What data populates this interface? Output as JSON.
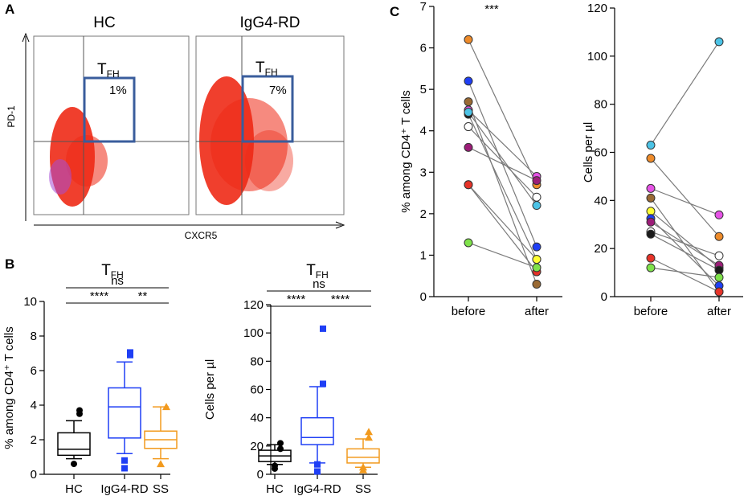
{
  "panels": {
    "a": "A",
    "b": "B",
    "c": "C"
  },
  "panel_a": {
    "plots": [
      {
        "title": "HC",
        "gate_label": "T",
        "gate_sub": "FH",
        "gate_percent": "1%"
      },
      {
        "title": "IgG4-RD",
        "gate_label": "T",
        "gate_sub": "FH",
        "gate_percent": "7%"
      }
    ],
    "y_axis": "PD-1",
    "x_axis": "CXCR5"
  },
  "chart_data": [
    {
      "id": "B-left",
      "type": "box",
      "title": "T",
      "title_sub": "FH",
      "ylabel": "% among CD4⁺ T cells",
      "ylim": [
        0,
        10
      ],
      "yticks": [
        "0",
        "2",
        "4",
        "6",
        "8",
        "10"
      ],
      "categories": [
        "HC",
        "IgG4-RD",
        "SS"
      ],
      "colors": [
        "#000000",
        "#1f3ff5",
        "#f29a1e"
      ],
      "markers": [
        "circle",
        "square",
        "triangle"
      ],
      "boxes": [
        {
          "whisker_low": 0.9,
          "q1": 1.1,
          "median": 1.45,
          "q3": 2.4,
          "whisker_high": 3.1,
          "outliers": [
            3.5,
            3.7,
            0.6
          ]
        },
        {
          "whisker_low": 1.2,
          "q1": 2.1,
          "median": 3.9,
          "q3": 5.0,
          "whisker_high": 6.5,
          "outliers": [
            6.9,
            7.05,
            0.8,
            0.35
          ]
        },
        {
          "whisker_low": 0.9,
          "q1": 1.5,
          "median": 2.0,
          "q3": 2.5,
          "whisker_high": 3.9,
          "outliers": [
            3.9,
            0.6
          ]
        }
      ],
      "significance": [
        {
          "label": "ns",
          "from": 0,
          "to": 2,
          "level": 1
        },
        {
          "label": "****",
          "from": 0,
          "to": 1,
          "level": 0
        },
        {
          "label": "**",
          "from": 1,
          "to": 2,
          "level": 0
        }
      ]
    },
    {
      "id": "B-right",
      "type": "box",
      "title": "T",
      "title_sub": "FH",
      "ylabel": "Cells per µl",
      "ylim": [
        0,
        120
      ],
      "yticks": [
        "0",
        "20",
        "40",
        "60",
        "80",
        "100",
        "120"
      ],
      "categories": [
        "HC",
        "IgG4-RD",
        "SS"
      ],
      "colors": [
        "#000000",
        "#1f3ff5",
        "#f29a1e"
      ],
      "markers": [
        "circle",
        "square",
        "triangle"
      ],
      "boxes": [
        {
          "whisker_low": 7,
          "q1": 9,
          "median": 13,
          "q3": 17,
          "whisker_high": 21,
          "outliers": [
            22,
            18,
            6,
            4
          ]
        },
        {
          "whisker_low": 8,
          "q1": 21,
          "median": 26,
          "q3": 40,
          "whisker_high": 62,
          "outliers": [
            103,
            64,
            7,
            2
          ]
        },
        {
          "whisker_low": 5,
          "q1": 8,
          "median": 12,
          "q3": 18,
          "whisker_high": 25,
          "outliers": [
            30,
            26,
            5,
            3
          ]
        }
      ],
      "significance": [
        {
          "label": "ns",
          "from": 0,
          "to": 2,
          "level": 1
        },
        {
          "label": "****",
          "from": 0,
          "to": 1,
          "level": 0
        },
        {
          "label": "****",
          "from": 1,
          "to": 2,
          "level": 0
        }
      ]
    },
    {
      "id": "C-left",
      "type": "paired-line",
      "annotation": "***",
      "ylabel": "% among CD4⁺ T cells",
      "ylim": [
        0,
        7
      ],
      "yticks": [
        "0",
        "1",
        "2",
        "3",
        "4",
        "5",
        "6",
        "7"
      ],
      "categories": [
        "before",
        "after"
      ],
      "series": [
        {
          "color": "#ee8b2a",
          "before": 6.2,
          "after": 2.7
        },
        {
          "color": "#1f3ff5",
          "before": 5.2,
          "after": 1.2
        },
        {
          "color": "#9a6a34",
          "before": 4.7,
          "after": 0.3
        },
        {
          "color": "#e653e6",
          "before": 4.5,
          "after": 2.9
        },
        {
          "color": "#1a1a1a",
          "before": 4.4,
          "after": 0.9
        },
        {
          "color": "#ffffff",
          "before": 4.1,
          "after": 2.4
        },
        {
          "color": "#9c1d78",
          "before": 3.6,
          "after": 2.8
        },
        {
          "color": "#ffff33",
          "before": 2.7,
          "after": 0.9
        },
        {
          "color": "#e63328",
          "before": 2.7,
          "after": 0.6
        },
        {
          "color": "#7fe24a",
          "before": 1.3,
          "after": 0.7
        },
        {
          "color": "#4cc3e6",
          "before": 4.45,
          "after": 2.2
        }
      ]
    },
    {
      "id": "C-right",
      "type": "paired-line",
      "ylabel": "Cells per µl",
      "ylim": [
        0,
        120
      ],
      "yticks": [
        "0",
        "20",
        "40",
        "60",
        "80",
        "100",
        "120"
      ],
      "categories": [
        "before",
        "after"
      ],
      "series": [
        {
          "color": "#4cc3e6",
          "before": 63,
          "after": 106
        },
        {
          "color": "#ee8b2a",
          "before": 57.5,
          "after": 25
        },
        {
          "color": "#e653e6",
          "before": 45,
          "after": 34
        },
        {
          "color": "#9a6a34",
          "before": 41,
          "after": 2
        },
        {
          "color": "#ffff33",
          "before": 35.5,
          "after": 12
        },
        {
          "color": "#1f3ff5",
          "before": 32.5,
          "after": 4.5
        },
        {
          "color": "#9c1d78",
          "before": 31,
          "after": 13
        },
        {
          "color": "#ffffff",
          "before": 27,
          "after": 17
        },
        {
          "color": "#1a1a1a",
          "before": 26,
          "after": 11
        },
        {
          "color": "#e63328",
          "before": 16,
          "after": 2
        },
        {
          "color": "#7fe24a",
          "before": 12,
          "after": 8
        }
      ]
    }
  ]
}
